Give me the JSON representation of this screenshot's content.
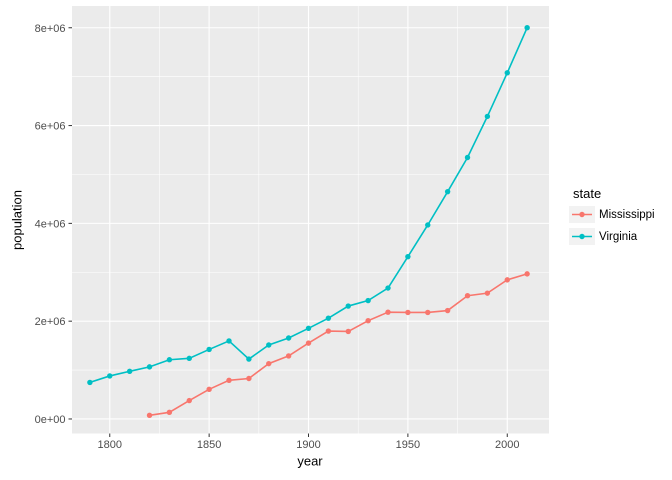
{
  "figure": {
    "background": "#FFFFFF",
    "panel_background": "#EBEBEB",
    "gridline_color": "#FFFFFF",
    "axis_text_color": "#4D4D4D",
    "axis_title_color": "#000000",
    "tick_color": "#333333",
    "legend_key_background": "#F2F2F2"
  },
  "chart_data": {
    "type": "line",
    "title": "",
    "xlabel": "year",
    "ylabel": "population",
    "grid": true,
    "xlim": [
      1781,
      2021
    ],
    "ylim": [
      -297000,
      8445000
    ],
    "x_ticks": [
      1800,
      1850,
      1900,
      1950,
      2000
    ],
    "x_tick_labels": [
      "1800",
      "1850",
      "1900",
      "1950",
      "2000"
    ],
    "x_minor_ticks": [
      1825,
      1875,
      1925,
      1975
    ],
    "y_ticks": [
      0,
      2000000,
      4000000,
      6000000,
      8000000
    ],
    "y_tick_labels": [
      "0e+00",
      "2e+06",
      "4e+06",
      "6e+06",
      "8e+06"
    ],
    "y_minor_ticks": [
      1000000,
      3000000,
      5000000,
      7000000
    ],
    "legend": {
      "title": "state",
      "position": "right"
    },
    "series": [
      {
        "name": "Mississippi",
        "color": "#F8766D",
        "x": [
          1820,
          1830,
          1840,
          1850,
          1860,
          1870,
          1880,
          1890,
          1900,
          1910,
          1920,
          1930,
          1940,
          1950,
          1960,
          1970,
          1980,
          1990,
          2000,
          2010
        ],
        "y": [
          75448,
          136621,
          375651,
          606526,
          791305,
          827922,
          1131597,
          1289600,
          1551270,
          1797114,
          1790618,
          2009821,
          2183796,
          2178914,
          2178141,
          2216912,
          2520638,
          2573216,
          2844658,
          2967297
        ]
      },
      {
        "name": "Virginia",
        "color": "#00BFC4",
        "x": [
          1790,
          1800,
          1810,
          1820,
          1830,
          1840,
          1850,
          1860,
          1870,
          1880,
          1890,
          1900,
          1910,
          1920,
          1930,
          1940,
          1950,
          1960,
          1970,
          1980,
          1990,
          2000,
          2010
        ],
        "y": [
          747610,
          880200,
          974600,
          1065366,
          1211405,
          1239797,
          1421661,
          1596318,
          1225163,
          1512565,
          1655980,
          1854184,
          2061612,
          2309187,
          2421851,
          2677773,
          3318680,
          3966949,
          4648494,
          5346818,
          6187358,
          7078515,
          8001024
        ]
      }
    ]
  }
}
